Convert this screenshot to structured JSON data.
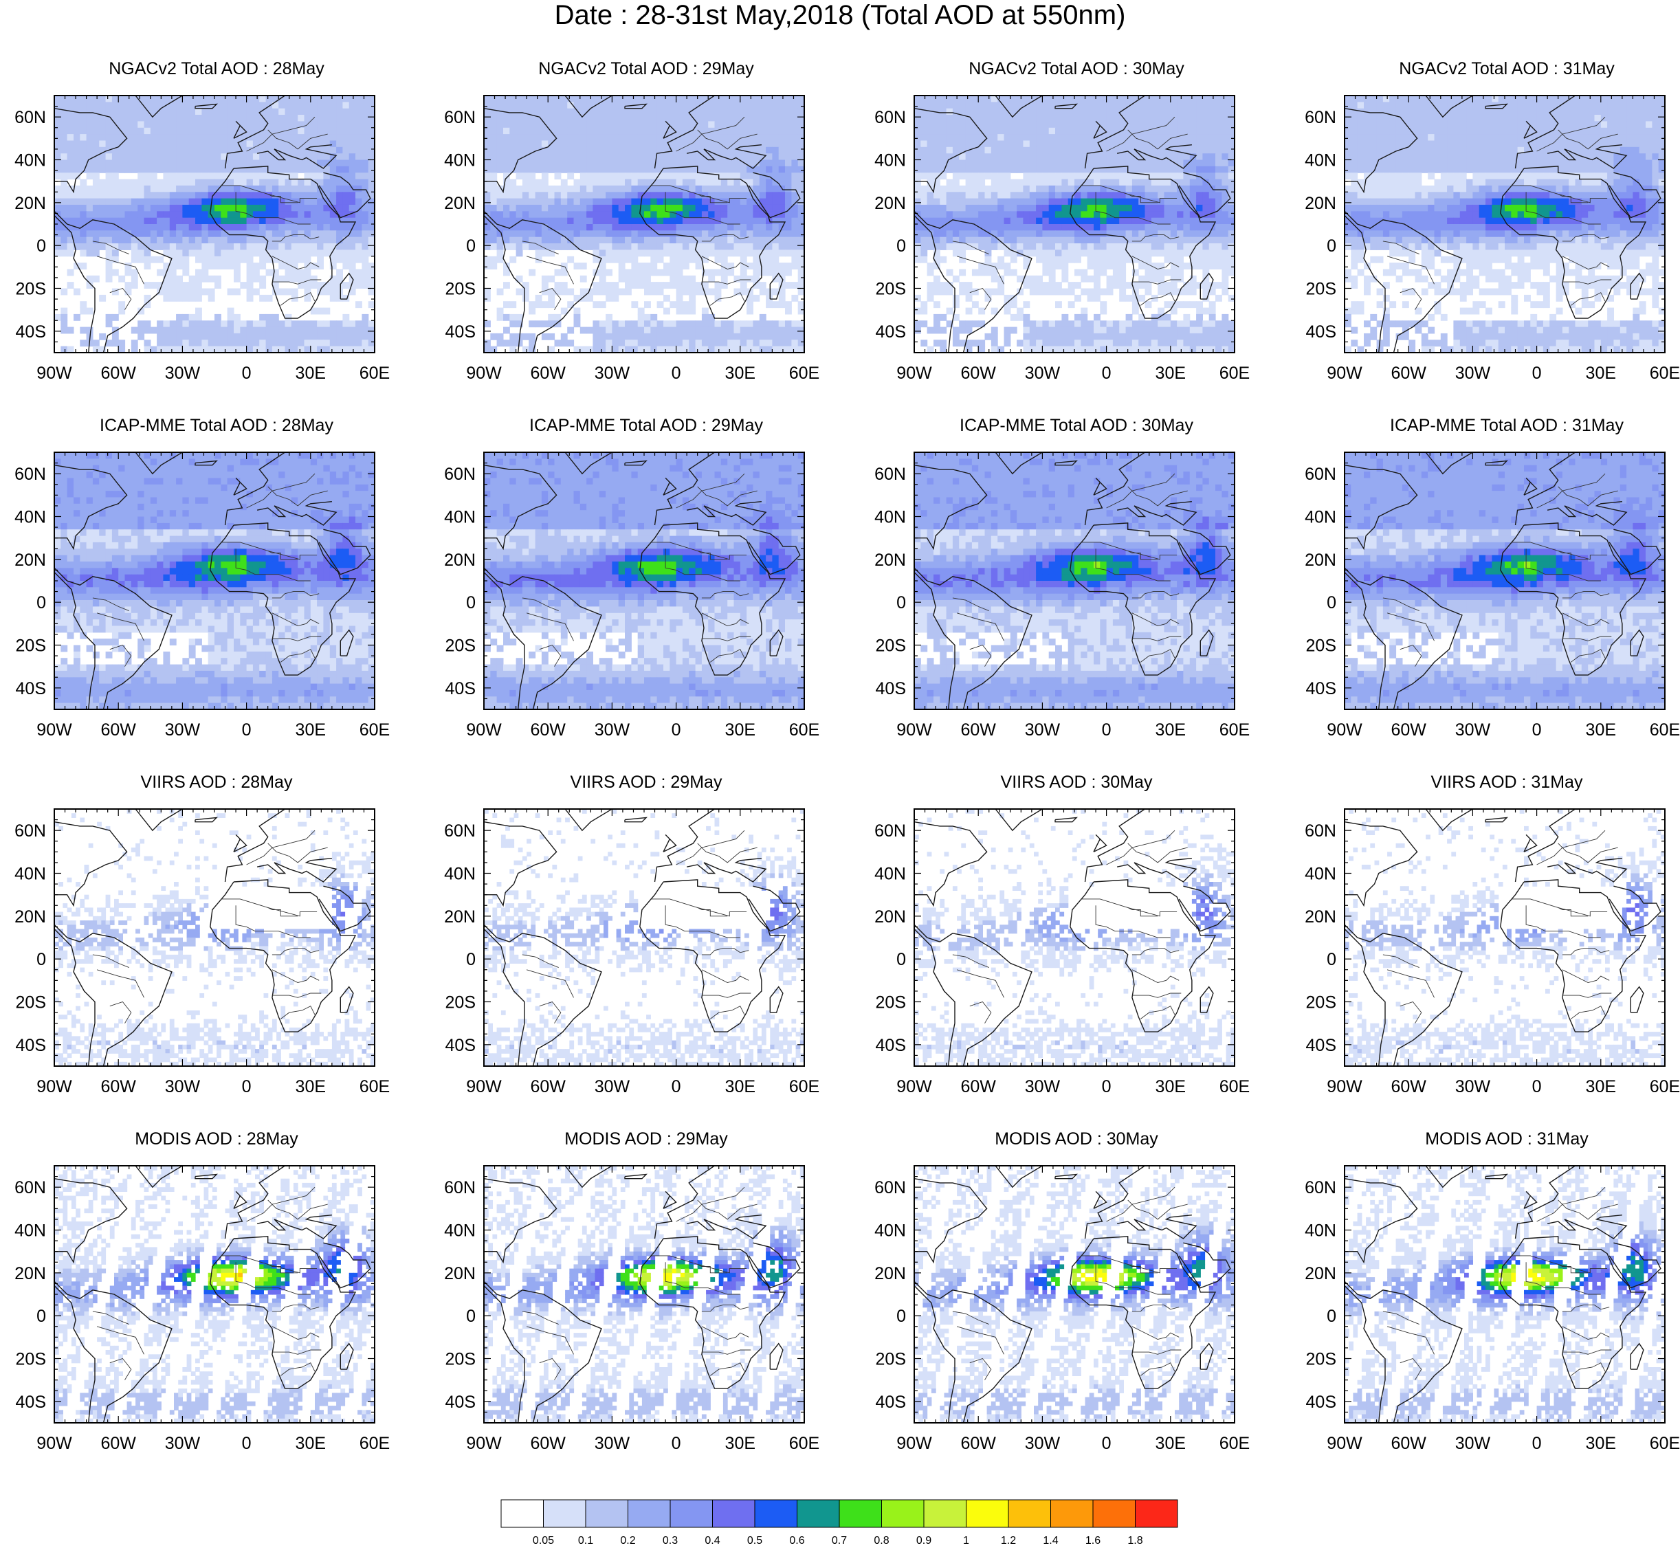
{
  "title": "Date : 28-31st May,2018 (Total AOD at 550nm)",
  "lon_ticks": [
    "90W",
    "60W",
    "30W",
    "0",
    "30E",
    "60E"
  ],
  "lat_ticks": [
    "60N",
    "40N",
    "20N",
    "0",
    "20S",
    "40S"
  ],
  "panels": [
    {
      "title": "NGACv2 Total AOD : 28May",
      "kind": "model",
      "dx": [
        0,
        0
      ]
    },
    {
      "title": "NGACv2 Total AOD : 29May",
      "kind": "model",
      "dx": [
        6,
        1
      ]
    },
    {
      "title": "NGACv2 Total AOD : 30May",
      "kind": "model",
      "dx": [
        12,
        1
      ]
    },
    {
      "title": "NGACv2 Total AOD : 31May",
      "kind": "model",
      "dx": [
        18,
        0
      ]
    },
    {
      "title": "ICAP-MME Total AOD : 28May",
      "kind": "ens",
      "dx": [
        0,
        0
      ]
    },
    {
      "title": "ICAP-MME Total AOD : 29May",
      "kind": "ens",
      "dx": [
        6,
        1
      ]
    },
    {
      "title": "ICAP-MME Total AOD : 30May",
      "kind": "ens",
      "dx": [
        12,
        1
      ]
    },
    {
      "title": "ICAP-MME Total AOD : 31May",
      "kind": "ens",
      "dx": [
        18,
        0
      ]
    },
    {
      "title": "VIIRS AOD : 28May",
      "kind": "viirs",
      "dx": [
        0,
        0
      ]
    },
    {
      "title": "VIIRS AOD : 29May",
      "kind": "viirs",
      "dx": [
        6,
        1
      ]
    },
    {
      "title": "VIIRS AOD : 30May",
      "kind": "viirs",
      "dx": [
        12,
        1
      ]
    },
    {
      "title": "VIIRS AOD : 31May",
      "kind": "viirs",
      "dx": [
        18,
        0
      ]
    },
    {
      "title": "MODIS AOD : 28May",
      "kind": "modis",
      "dx": [
        0,
        0
      ]
    },
    {
      "title": "MODIS AOD : 29May",
      "kind": "modis",
      "dx": [
        6,
        1
      ]
    },
    {
      "title": "MODIS AOD : 30May",
      "kind": "modis",
      "dx": [
        12,
        1
      ]
    },
    {
      "title": "MODIS AOD : 31May",
      "kind": "modis",
      "dx": [
        18,
        0
      ]
    }
  ],
  "colorbar": {
    "labels": [
      "0.05",
      "0.1",
      "0.2",
      "0.3",
      "0.4",
      "0.5",
      "0.6",
      "0.7",
      "0.8",
      "0.9",
      "1",
      "1.2",
      "1.4",
      "1.6",
      "1.8"
    ],
    "colors": [
      "#ffffff",
      "#d6e0f9",
      "#b4c3f2",
      "#96aaf2",
      "#8496f2",
      "#6f6ff0",
      "#1c5cf4",
      "#11968f",
      "#3ee01a",
      "#99f21a",
      "#c8f23a",
      "#fbfd0c",
      "#fdc00a",
      "#fd990a",
      "#fd7009",
      "#fc2718"
    ]
  }
}
